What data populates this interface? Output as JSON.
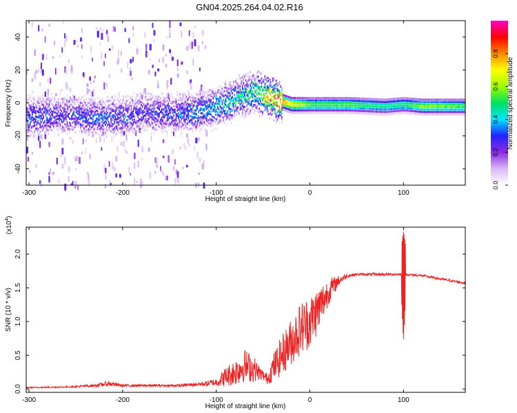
{
  "title": "GN04.2025.264.04.02.R16",
  "chart_data": [
    {
      "type": "heatmap",
      "xlabel": "Height of straight line (km)",
      "ylabel": "Frequency (Hz)",
      "xlim": [
        -303,
        166
      ],
      "ylim": [
        -50,
        50
      ],
      "x_ticks": [
        -300,
        -200,
        -100,
        0,
        100
      ],
      "y_ticks": [
        -40,
        -20,
        0,
        20,
        40
      ],
      "colorbar": {
        "label": "Normalized spectral amplitude",
        "range": [
          0,
          1
        ],
        "ticks": [
          "0.0",
          "0.2",
          "0.4",
          "0.6",
          "0.8"
        ],
        "tick_values": [
          0.0,
          0.2,
          0.4,
          0.6,
          0.8
        ],
        "colormap": [
          "#ffffff",
          "#d8b8f8",
          "#8a2be2",
          "#2222ff",
          "#00e5ff",
          "#00e060",
          "#a0ff00",
          "#ffff00",
          "#ff8800",
          "#ff0000",
          "#ff00cc"
        ]
      },
      "ridge": {
        "x": [
          -303,
          -260,
          -220,
          -180,
          -140,
          -110,
          -90,
          -75,
          -60,
          -50,
          -40,
          -30,
          -20,
          0,
          40,
          80,
          100,
          120,
          166
        ],
        "frequency": [
          -8,
          -7,
          -9,
          -6,
          -6,
          -4,
          0,
          4,
          7,
          5,
          3,
          1,
          -1,
          -1,
          -1,
          -2,
          -1,
          -2,
          -2
        ],
        "amplitude": [
          0.35,
          0.3,
          0.35,
          0.3,
          0.35,
          0.4,
          0.45,
          0.5,
          0.55,
          0.7,
          0.9,
          0.85,
          0.7,
          0.55,
          0.55,
          0.5,
          0.5,
          0.6,
          0.55
        ]
      },
      "broadband_noise_x_range": [
        -303,
        -110
      ]
    },
    {
      "type": "line",
      "xlabel": "Height of straight line (km)",
      "ylabel": "SNR (10 * v/v)",
      "y_multiplier": "(x10",
      "y_multiplier_exp": "4",
      "xlim": [
        -303,
        166
      ],
      "ylim": [
        -0.05,
        2.4
      ],
      "x_ticks": [
        -300,
        -200,
        -100,
        0,
        100
      ],
      "y_ticks": [
        0.0,
        0.5,
        1.0,
        1.5,
        2.0
      ],
      "series": [
        {
          "color": "#ee2222",
          "x": [
            -303,
            -260,
            -230,
            -215,
            -200,
            -170,
            -140,
            -120,
            -110,
            -100,
            -90,
            -80,
            -70,
            -60,
            -55,
            -50,
            -45,
            -40,
            -30,
            -20,
            -10,
            0,
            10,
            20,
            30,
            40,
            50,
            60,
            80,
            100,
            120,
            140,
            166
          ],
          "mid": [
            0.02,
            0.03,
            0.05,
            0.08,
            0.05,
            0.05,
            0.05,
            0.07,
            0.08,
            0.1,
            0.18,
            0.25,
            0.35,
            0.3,
            0.25,
            0.2,
            0.15,
            0.3,
            0.5,
            0.7,
            0.9,
            1.0,
            1.2,
            1.45,
            1.6,
            1.68,
            1.7,
            1.7,
            1.7,
            1.7,
            1.68,
            1.63,
            1.57
          ],
          "spread": [
            0.01,
            0.01,
            0.02,
            0.04,
            0.02,
            0.02,
            0.02,
            0.03,
            0.04,
            0.06,
            0.15,
            0.2,
            0.25,
            0.2,
            0.12,
            0.08,
            0.08,
            0.2,
            0.3,
            0.35,
            0.4,
            0.4,
            0.35,
            0.2,
            0.08,
            0.03,
            0.02,
            0.02,
            0.02,
            0.02,
            0.02,
            0.02,
            0.02
          ],
          "spike": {
            "x": 100,
            "max": 2.35,
            "min": 0.68
          }
        }
      ]
    }
  ]
}
